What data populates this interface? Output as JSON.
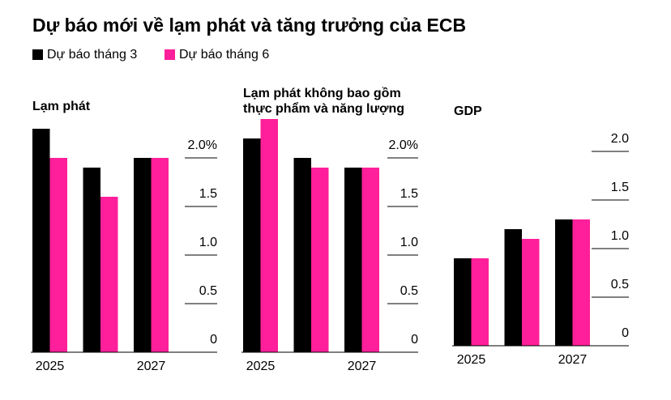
{
  "title": "Dự báo mới về lạm phát và tăng trưởng của ECB",
  "legend": [
    {
      "name": "Dự báo tháng 3",
      "color": "#000000"
    },
    {
      "name": "Dự báo tháng 6",
      "color": "#ff1f9a"
    }
  ],
  "chart_data": [
    {
      "type": "bar",
      "title": "Lạm phát",
      "categories": [
        "2025",
        null,
        "2027"
      ],
      "series": [
        {
          "values": [
            2.3,
            1.9,
            2.0
          ]
        },
        {
          "values": [
            2.0,
            1.6,
            2.0
          ]
        }
      ],
      "ylim": [
        0,
        2.5
      ],
      "yticks": [
        0,
        0.5,
        {
          "value": 1,
          "label": "1.0"
        },
        1.5,
        {
          "value": 2,
          "label": "2.0%"
        }
      ]
    },
    {
      "type": "bar",
      "title": "Lạm phát không bao gồm thực phẩm và năng lượng",
      "categories": [
        "2025",
        null,
        "2027"
      ],
      "series": [
        {
          "values": [
            2.2,
            2.0,
            1.9
          ]
        },
        {
          "values": [
            2.4,
            1.9,
            1.9
          ]
        }
      ],
      "ylim": [
        0,
        2.5
      ],
      "yticks": [
        0,
        0.5,
        {
          "value": 1,
          "label": "1.0"
        },
        1.5,
        {
          "value": 2,
          "label": "2.0%"
        }
      ]
    },
    {
      "type": "bar",
      "title": "GDP",
      "categories": [
        "2025",
        null,
        "2027"
      ],
      "series": [
        {
          "values": [
            0.9,
            1.2,
            1.3
          ]
        },
        {
          "values": [
            0.9,
            1.1,
            1.3
          ]
        }
      ],
      "ylim": [
        0,
        2.5
      ],
      "yticks": [
        0,
        0.5,
        {
          "value": 1,
          "label": "1.0"
        },
        1.5,
        {
          "value": 2,
          "label": "2.0"
        }
      ]
    }
  ]
}
